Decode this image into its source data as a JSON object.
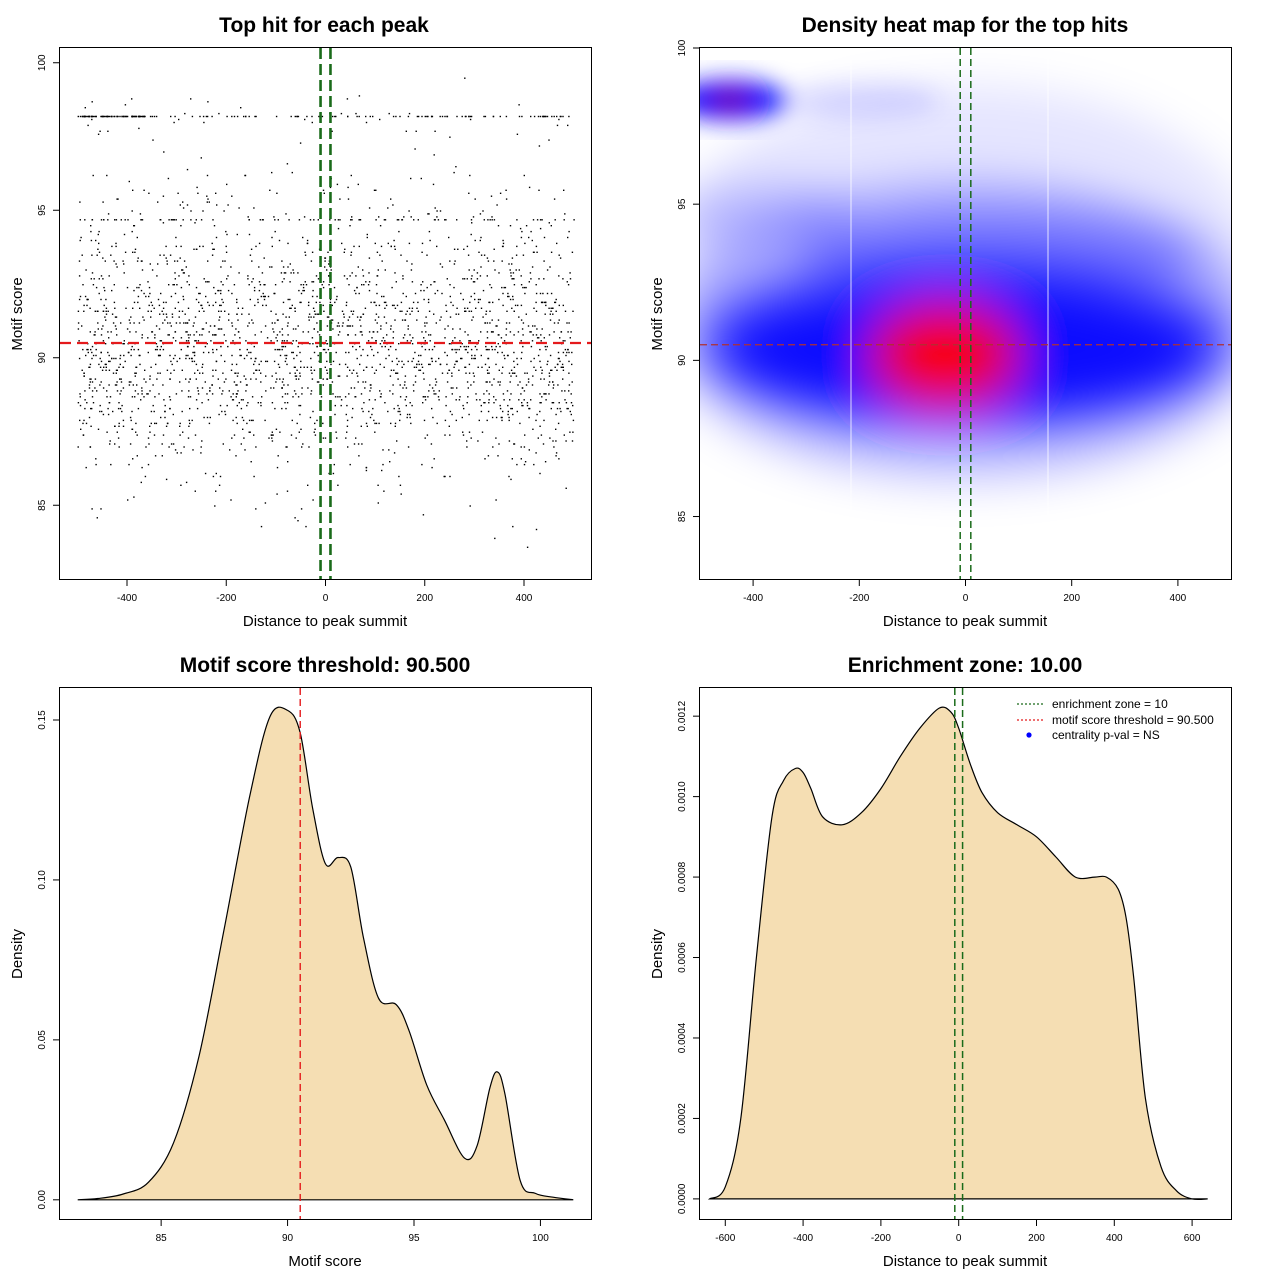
{
  "colors": {
    "threshold": "#e41a1c",
    "zone": "#1a6b1a",
    "fill": "#f5deb3",
    "heat_low": "#ffffff",
    "heat_mid": "#0000ff",
    "heat_high": "#ff0000"
  },
  "chart_data": [
    {
      "id": "scatter",
      "type": "scatter",
      "title": "Top hit for each peak",
      "xlabel": "Distance to peak summit",
      "ylabel": "Motif score",
      "xlim": [
        -535,
        535
      ],
      "ylim": [
        82.5,
        100.5
      ],
      "xticks": [
        -400,
        -200,
        0,
        200,
        400
      ],
      "yticks": [
        85,
        90,
        95,
        100
      ],
      "threshold": 90.5,
      "zone": [
        -10,
        10
      ],
      "n_points": 2600
    },
    {
      "id": "heatmap",
      "type": "heatmap",
      "title": "Density heat map for the top hits",
      "xlabel": "Distance to peak summit",
      "ylabel": "Motif score",
      "xlim": [
        -500,
        500
      ],
      "ylim": [
        83,
        100
      ],
      "xticks": [
        -400,
        -200,
        0,
        200,
        400
      ],
      "yticks": [
        85,
        90,
        95,
        100
      ],
      "threshold": 90.5,
      "zone": [
        -10,
        10
      ],
      "hotspots": [
        {
          "x": -40,
          "y": 90.3,
          "level": "high"
        },
        {
          "x": -440,
          "y": 98.3,
          "level": "medium"
        }
      ]
    },
    {
      "id": "score-density",
      "type": "area",
      "title": "Motif score threshold: 90.500",
      "xlabel": "Motif score",
      "ylabel": "Density",
      "xlim": [
        81,
        102
      ],
      "ylim": [
        -0.006,
        0.16
      ],
      "xticks": [
        85,
        90,
        95,
        100
      ],
      "yticks": [
        0.0,
        0.05,
        0.1,
        0.15
      ],
      "ytick_labels": [
        "0.00",
        "0.05",
        "0.10",
        "0.15"
      ],
      "threshold": 90.5,
      "x": [
        81.7,
        82.5,
        83.5,
        84.5,
        85.5,
        86.5,
        87.5,
        88.5,
        89.3,
        90.0,
        90.5,
        91.0,
        91.5,
        92.0,
        92.5,
        93.0,
        93.6,
        94.3,
        94.8,
        95.5,
        96.2,
        97.0,
        97.5,
        98.0,
        98.3,
        98.6,
        99.2,
        99.8,
        100.5,
        101.3
      ],
      "y": [
        0.0,
        0.0004,
        0.0018,
        0.0055,
        0.018,
        0.045,
        0.085,
        0.126,
        0.151,
        0.153,
        0.146,
        0.122,
        0.105,
        0.107,
        0.104,
        0.082,
        0.063,
        0.061,
        0.053,
        0.036,
        0.025,
        0.013,
        0.017,
        0.035,
        0.04,
        0.033,
        0.006,
        0.002,
        0.0008,
        0.0
      ]
    },
    {
      "id": "distance-density",
      "type": "area",
      "title": "Enrichment zone: 10.00",
      "xlabel": "Distance to peak summit",
      "ylabel": "Density",
      "xlim": [
        -665,
        700
      ],
      "ylim": [
        -5e-05,
        0.00127
      ],
      "xticks": [
        -600,
        -400,
        -200,
        0,
        200,
        400,
        600
      ],
      "yticks": [
        0.0,
        0.0002,
        0.0004,
        0.0006,
        0.0008,
        0.001,
        0.0012
      ],
      "ytick_labels": [
        "0.0000",
        "0.0002",
        "0.0004",
        "0.0006",
        "0.0008",
        "0.0010",
        "0.0012"
      ],
      "zone": [
        -10,
        10
      ],
      "x": [
        -640,
        -600,
        -560,
        -520,
        -480,
        -450,
        -420,
        -400,
        -380,
        -350,
        -300,
        -250,
        -200,
        -150,
        -100,
        -50,
        -20,
        0,
        30,
        60,
        100,
        150,
        200,
        250,
        300,
        350,
        380,
        410,
        430,
        450,
        480,
        520,
        560,
        600,
        640
      ],
      "y": [
        0.0,
        3e-05,
        0.0002,
        0.0006,
        0.00095,
        0.00104,
        0.00107,
        0.00106,
        0.00102,
        0.00095,
        0.00093,
        0.00096,
        0.00102,
        0.0011,
        0.00117,
        0.00122,
        0.00121,
        0.00117,
        0.00108,
        0.00101,
        0.00096,
        0.00093,
        0.0009,
        0.00085,
        0.0008,
        0.0008,
        0.0008,
        0.00077,
        0.0007,
        0.00055,
        0.00025,
        8e-05,
        2e-05,
        0.0,
        0.0
      ],
      "legend": {
        "placement": "top-right",
        "entries": [
          {
            "label": "enrichment zone = 10",
            "style": "dotted-green"
          },
          {
            "label": "motif score threshold = 90.500",
            "style": "dotted-red"
          },
          {
            "label": "centrality p-val = NS",
            "style": "blue-dot"
          }
        ]
      }
    }
  ]
}
